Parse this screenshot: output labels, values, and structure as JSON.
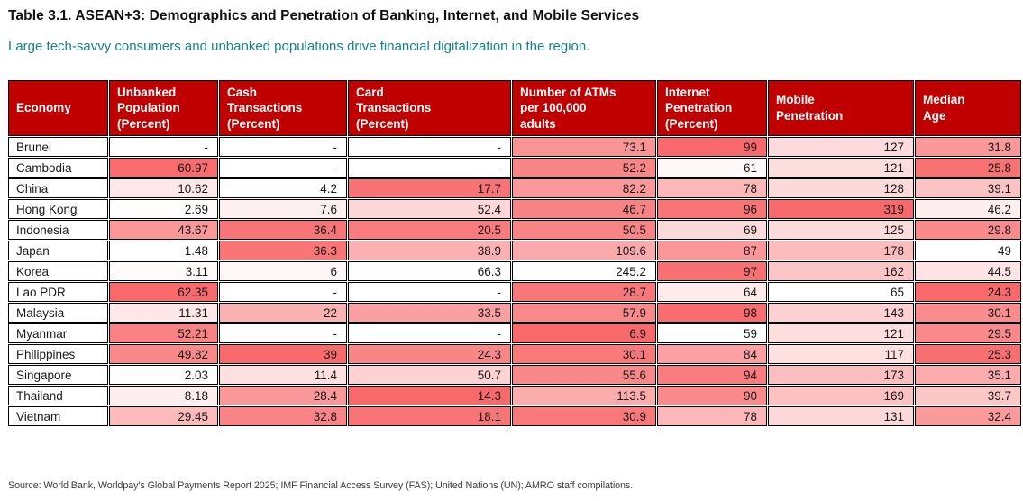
{
  "title": "Table 3.1. ASEAN+3: Demographics and Penetration of Banking, Internet, and Mobile Services",
  "subtitle": "Large tech-savvy consumers and unbanked populations drive financial digitalization in the region.",
  "source": "Source: World Bank, Worldpay's Global Payments Report 2025; IMF Financial Access Survey (FAS); United Nations (UN); AMRO staff compilations.",
  "colors": {
    "header_bg": "#C00000",
    "header_text": "#FFFFFF",
    "subtitle_text": "#17808A",
    "border": "#000000",
    "heat_low": "#FFFFFF",
    "heat_high": "#F8696B"
  },
  "chart_data": {
    "type": "table",
    "columns": [
      {
        "key": "economy",
        "label": "Economy",
        "width": 111
      },
      {
        "key": "unbanked",
        "label": "Unbanked\nPopulation\n(Percent)",
        "width": 121,
        "min": 1.48,
        "max": 62.35,
        "red_end": "max"
      },
      {
        "key": "cash",
        "label": "Cash\nTransactions\n(Percent)",
        "width": 142,
        "min": 4.2,
        "max": 39,
        "red_end": "max"
      },
      {
        "key": "card",
        "label": "Card\nTransactions\n(Percent)",
        "width": 181,
        "min": 14.3,
        "max": 66.3,
        "red_end": "min"
      },
      {
        "key": "atms",
        "label": "Number of ATMs\nper 100,000\nadults",
        "width": 160,
        "min": 6.9,
        "max": 245.2,
        "red_end": "min"
      },
      {
        "key": "internet",
        "label": "Internet\nPenetration\n(Percent)",
        "width": 122,
        "min": 59,
        "max": 99,
        "red_end": "max"
      },
      {
        "key": "mobile",
        "label": "Mobile\nPenetration",
        "width": 162,
        "min": 65,
        "max": 319,
        "red_end": "max"
      },
      {
        "key": "median_age",
        "label": "Median\nAge",
        "width": 118,
        "min": 24.3,
        "max": 49,
        "red_end": "min"
      }
    ],
    "rows": [
      [
        "Brunei",
        "-",
        "-",
        "-",
        "73.1",
        "99",
        "127",
        "31.8"
      ],
      [
        "Cambodia",
        "60.97",
        "-",
        "-",
        "52.2",
        "61",
        "121",
        "25.8"
      ],
      [
        "China",
        "10.62",
        "4.2",
        "17.7",
        "82.2",
        "78",
        "128",
        "39.1"
      ],
      [
        "Hong Kong",
        "2.69",
        "7.6",
        "52.4",
        "46.7",
        "96",
        "319",
        "46.2"
      ],
      [
        "Indonesia",
        "43.67",
        "36.4",
        "20.5",
        "50.5",
        "69",
        "125",
        "29.8"
      ],
      [
        "Japan",
        "1.48",
        "36.3",
        "38.9",
        "109.6",
        "87",
        "178",
        "49"
      ],
      [
        "Korea",
        "3.11",
        "6",
        "66.3",
        "245.2",
        "97",
        "162",
        "44.5"
      ],
      [
        "Lao PDR",
        "62.35",
        "-",
        "-",
        "28.7",
        "64",
        "65",
        "24.3"
      ],
      [
        "Malaysia",
        "11.31",
        "22",
        "33.5",
        "57.9",
        "98",
        "143",
        "30.1"
      ],
      [
        "Myanmar",
        "52.21",
        "-",
        "-",
        "6.9",
        "59",
        "121",
        "29.5"
      ],
      [
        "Philippines",
        "49.82",
        "39",
        "24.3",
        "30.1",
        "84",
        "117",
        "25.3"
      ],
      [
        "Singapore",
        "2.03",
        "11.4",
        "50.7",
        "55.6",
        "94",
        "173",
        "35.1"
      ],
      [
        "Thailand",
        "8.18",
        "28.4",
        "14.3",
        "113.5",
        "90",
        "169",
        "39.7"
      ],
      [
        "Vietnam",
        "29.45",
        "32.8",
        "18.1",
        "30.9",
        "78",
        "131",
        "32.4"
      ]
    ]
  }
}
